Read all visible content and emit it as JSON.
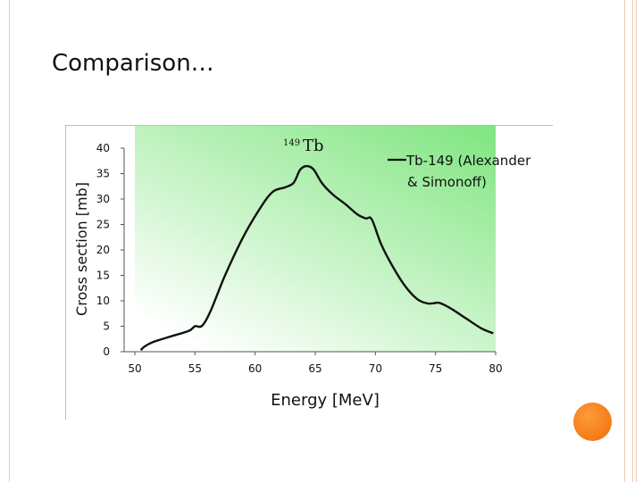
{
  "slide": {
    "title": "Comparison…"
  },
  "colors": {
    "plot_light": "#ffffff",
    "plot_green": "#7fe57f",
    "curve": "#111111",
    "accent_orange": "#f47b16",
    "border_peach": "#f2c9b4"
  },
  "chart_data": {
    "type": "line",
    "title_sup": "149",
    "title_main": "Tb",
    "xlabel": "Energy [MeV]",
    "ylabel": "Cross section [mb]",
    "xlim": [
      50,
      80
    ],
    "ylim": [
      0,
      40
    ],
    "xticks": [
      50,
      55,
      60,
      65,
      70,
      75,
      80
    ],
    "yticks": [
      0,
      5,
      10,
      15,
      20,
      25,
      30,
      35,
      40
    ],
    "legend_line1": "Tb-149 (Alexander",
    "legend_line2": "& Simonoff)",
    "series": [
      {
        "name": "Tb-149 (Alexander & Simonoff)",
        "x": [
          50.5,
          50.8,
          51.5,
          53,
          54.5,
          55,
          55.6,
          56.3,
          57.5,
          59,
          60.5,
          61.5,
          62.5,
          63.2,
          63.7,
          64.1,
          64.5,
          64.9,
          65.6,
          66.5,
          67.5,
          68.5,
          69.2,
          69.7,
          70.5,
          71.5,
          72.5,
          73.5,
          74.3,
          74.8,
          75.3,
          76.2,
          77.5,
          78.8,
          79.8
        ],
        "y": [
          0.3,
          1.0,
          1.9,
          3.0,
          4.1,
          5.0,
          5.1,
          8.0,
          15.0,
          22.5,
          28.5,
          31.5,
          32.3,
          33.2,
          35.6,
          36.4,
          36.4,
          35.7,
          33.0,
          30.8,
          29.0,
          27.0,
          26.2,
          26.0,
          21.0,
          16.5,
          12.8,
          10.3,
          9.5,
          9.5,
          9.6,
          8.6,
          6.6,
          4.6,
          3.6
        ]
      }
    ]
  }
}
